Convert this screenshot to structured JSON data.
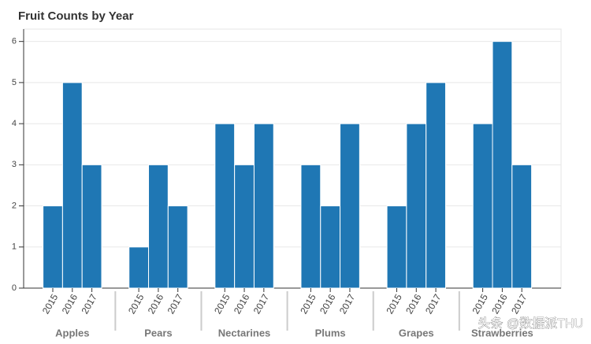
{
  "chart_data": {
    "type": "bar",
    "title": "Fruit Counts by Year",
    "groups": [
      {
        "name": "Apples",
        "categories": [
          "2015",
          "2016",
          "2017"
        ],
        "values": [
          2,
          5,
          3
        ]
      },
      {
        "name": "Pears",
        "categories": [
          "2015",
          "2016",
          "2017"
        ],
        "values": [
          1,
          3,
          2
        ]
      },
      {
        "name": "Nectarines",
        "categories": [
          "2015",
          "2016",
          "2017"
        ],
        "values": [
          4,
          3,
          4
        ]
      },
      {
        "name": "Plums",
        "categories": [
          "2015",
          "2016",
          "2017"
        ],
        "values": [
          3,
          2,
          4
        ]
      },
      {
        "name": "Grapes",
        "categories": [
          "2015",
          "2016",
          "2017"
        ],
        "values": [
          2,
          4,
          5
        ]
      },
      {
        "name": "Strawberries",
        "categories": [
          "2015",
          "2016",
          "2017"
        ],
        "values": [
          4,
          6,
          3
        ]
      }
    ],
    "color": "#1f77b4",
    "ylim": [
      0,
      6.3
    ],
    "yticks": [
      0,
      1,
      2,
      3,
      4,
      5,
      6
    ],
    "grid": true,
    "watermark": "头条 @数据派THU"
  }
}
